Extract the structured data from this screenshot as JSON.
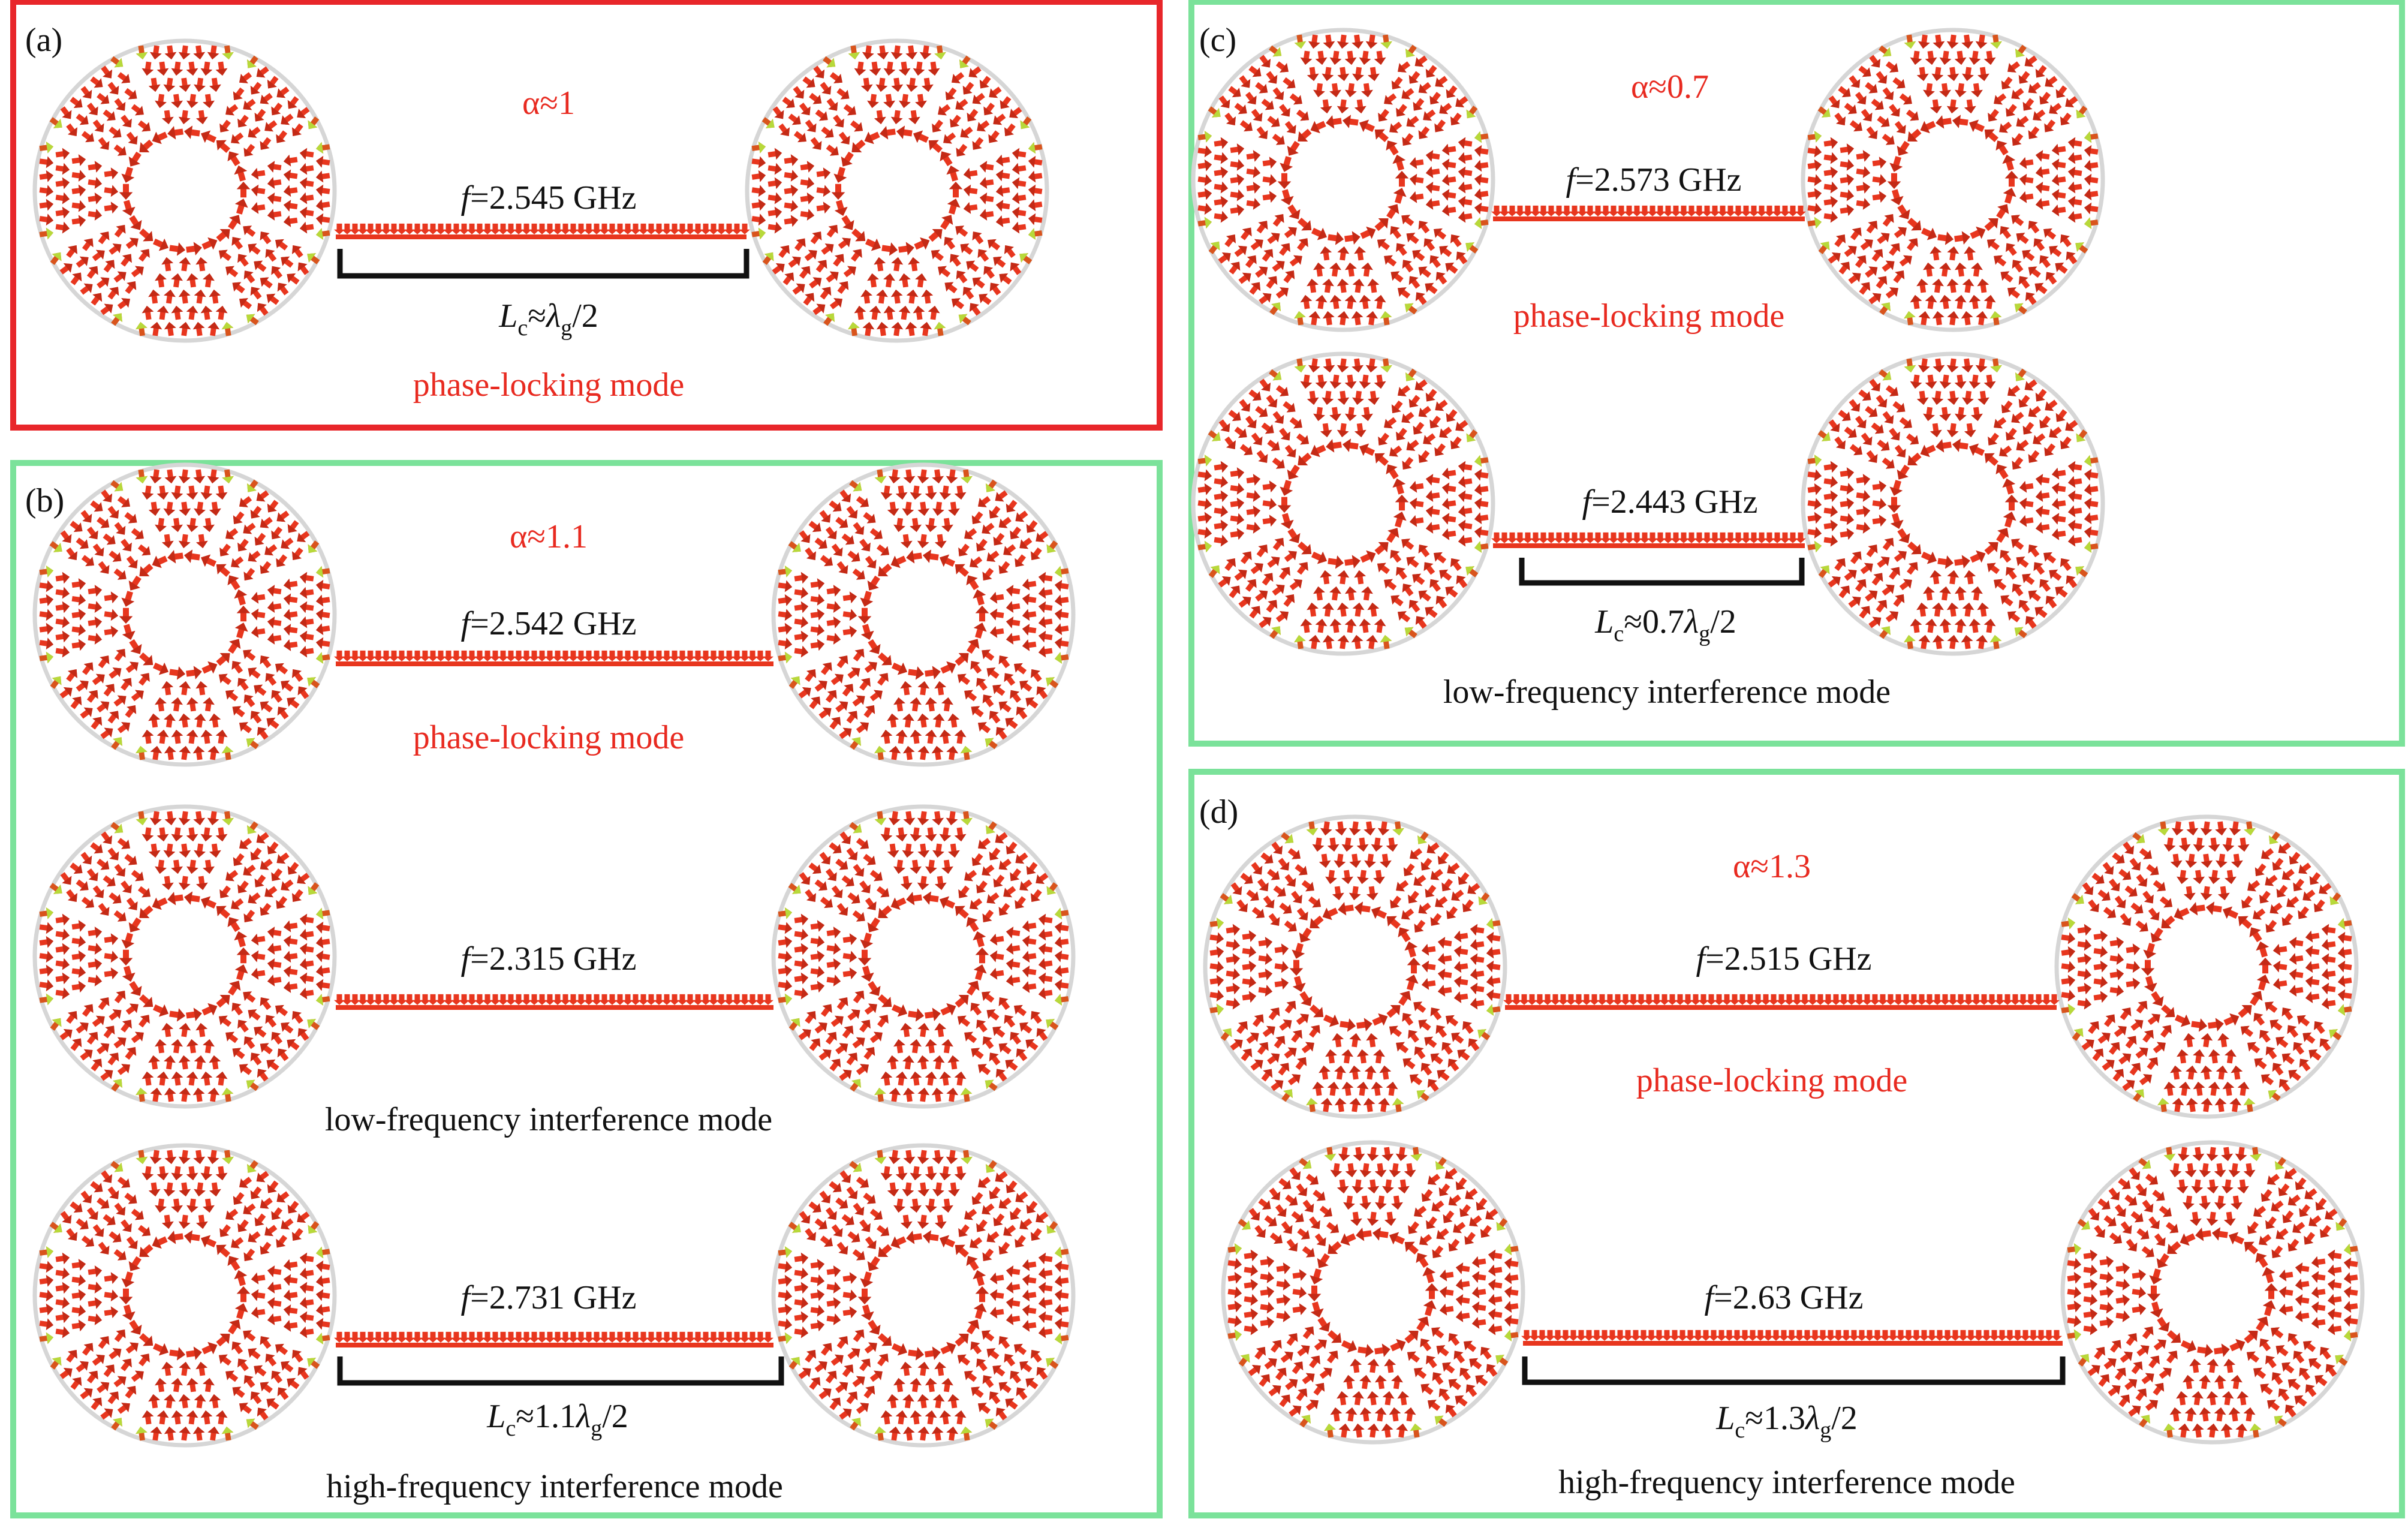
{
  "colors": {
    "frame_highlight": "#e8262a",
    "frame_normal": "#7be29a",
    "mode_text_red": "#e82a20",
    "text_black": "#111111",
    "arrow_main": "#e8361e",
    "arrow_alt": "#d9541c",
    "arrow_tip": "#b7d93a",
    "circle_edge": "#d6d6d6"
  },
  "panels": [
    {
      "label": "(a)",
      "alpha": "α≈1",
      "frame": "highlight",
      "rows": [
        {
          "freq_symbol": "f",
          "freq_value": "=2.545 GHz",
          "mode": "phase-locking mode",
          "mode_color": "red",
          "length_symbol": "L",
          "length_sub": "c",
          "length_mid": "≈",
          "length_lambda": "λ",
          "length_lambda_sub": "g",
          "length_tail": "/2"
        }
      ]
    },
    {
      "label": "(b)",
      "alpha": "α≈1.1",
      "frame": "normal",
      "rows": [
        {
          "freq_symbol": "f",
          "freq_value": "=2.542 GHz",
          "mode": "phase-locking mode",
          "mode_color": "red"
        },
        {
          "freq_symbol": "f",
          "freq_value": "=2.315 GHz",
          "mode": "low-frequency interference mode",
          "mode_color": "black"
        },
        {
          "freq_symbol": "f",
          "freq_value": "=2.731 GHz",
          "mode": "high-frequency interference mode",
          "mode_color": "black",
          "length_symbol": "L",
          "length_sub": "c",
          "length_mid": "≈1.1",
          "length_lambda": "λ",
          "length_lambda_sub": "g",
          "length_tail": "/2"
        }
      ]
    },
    {
      "label": "(c)",
      "alpha": "α≈0.7",
      "frame": "normal",
      "rows": [
        {
          "freq_symbol": "f",
          "freq_value": "=2.573 GHz",
          "mode": "phase-locking mode",
          "mode_color": "red"
        },
        {
          "freq_symbol": "f",
          "freq_value": "=2.443 GHz",
          "mode": "low-frequency interference mode",
          "mode_color": "black",
          "length_symbol": "L",
          "length_sub": "c",
          "length_mid": "≈0.7",
          "length_lambda": "λ",
          "length_lambda_sub": "g",
          "length_tail": "/2"
        }
      ]
    },
    {
      "label": "(d)",
      "alpha": "α≈1.3",
      "frame": "normal",
      "rows": [
        {
          "freq_symbol": "f",
          "freq_value": "=2.515 GHz",
          "mode": "phase-locking mode",
          "mode_color": "red"
        },
        {
          "freq_symbol": "f",
          "freq_value": "=2.63 GHz",
          "mode": "high-frequency interference mode",
          "mode_color": "black",
          "length_symbol": "L",
          "length_sub": "c",
          "length_mid": "≈1.3",
          "length_lambda": "λ",
          "length_lambda_sub": "g",
          "length_tail": "/2"
        }
      ]
    }
  ]
}
